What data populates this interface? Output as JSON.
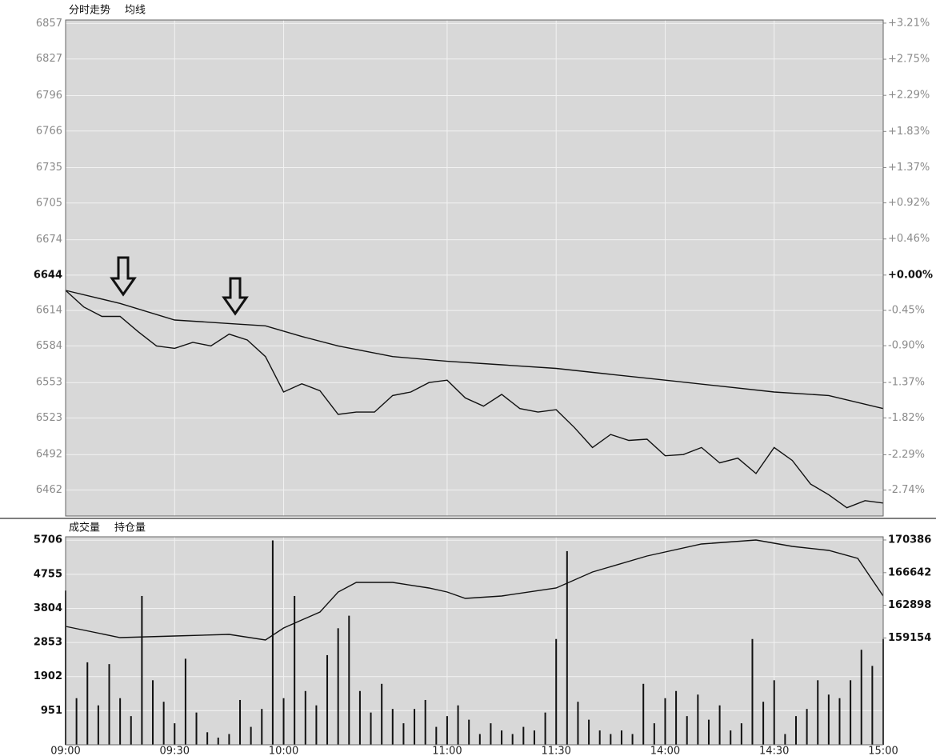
{
  "chart_data": [
    {
      "type": "line",
      "xlim": [
        0,
        225
      ],
      "ylim": [
        6440,
        6860
      ],
      "y2lim": [
        -3.07,
        3.25
      ],
      "yticks": [
        6857,
        6827,
        6796,
        6766,
        6735,
        6705,
        6674,
        6644,
        6614,
        6584,
        6553,
        6523,
        6492,
        6462
      ],
      "y2ticks": [
        {
          "value": 3.21,
          "label": "+3.21%"
        },
        {
          "value": 2.75,
          "label": "+2.75%"
        },
        {
          "value": 2.29,
          "label": "+2.29%"
        },
        {
          "value": 1.83,
          "label": "+1.83%"
        },
        {
          "value": 1.37,
          "label": "+1.37%"
        },
        {
          "value": 0.92,
          "label": "+0.92%"
        },
        {
          "value": 0.46,
          "label": "+0.46%"
        },
        {
          "value": 0.0,
          "label": "+0.00%"
        },
        {
          "value": -0.45,
          "label": "-0.45%"
        },
        {
          "value": -0.9,
          "label": "-0.90%"
        },
        {
          "value": -1.37,
          "label": "-1.37%"
        },
        {
          "value": -1.82,
          "label": "-1.82%"
        },
        {
          "value": -2.29,
          "label": "-2.29%"
        },
        {
          "value": -2.74,
          "label": "-2.74%"
        }
      ],
      "grid": true,
      "series": [
        {
          "name": "分时走势",
          "color": "#111111",
          "x": [
            0,
            5,
            10,
            15,
            20,
            25,
            30,
            35,
            40,
            45,
            50,
            55,
            60,
            65,
            70,
            75,
            80,
            85,
            90,
            95,
            100,
            105,
            110,
            115,
            120,
            125,
            130,
            135,
            140,
            145,
            150,
            155,
            160,
            165,
            170,
            175,
            180,
            185,
            190,
            195,
            200,
            205,
            210,
            215,
            220,
            225
          ],
          "values": [
            6631,
            6617,
            6609,
            6609,
            6596,
            6584,
            6582,
            6587,
            6584,
            6594,
            6589,
            6575,
            6545,
            6552,
            6546,
            6526,
            6528,
            6528,
            6542,
            6545,
            6553,
            6555,
            6540,
            6533,
            6543,
            6531,
            6528,
            6530,
            6515,
            6498,
            6509,
            6504,
            6505,
            6491,
            6492,
            6498,
            6485,
            6489,
            6476,
            6498,
            6487,
            6467,
            6458,
            6447,
            6453,
            6451
          ]
        },
        {
          "name": "均线",
          "color": "#111111",
          "x": [
            0,
            15,
            30,
            45,
            55,
            65,
            75,
            90,
            105,
            120,
            135,
            150,
            165,
            180,
            195,
            210,
            225
          ],
          "values": [
            6631,
            6620,
            6606,
            6603,
            6601,
            6592,
            6584,
            6575,
            6571,
            6568,
            6565,
            6560,
            6555,
            6550,
            6545,
            6542,
            6531
          ]
        }
      ]
    },
    {
      "type": "bar",
      "xlim": [
        0,
        225
      ],
      "ylim": [
        0,
        5800
      ],
      "y2lim": [
        146920,
        170750
      ],
      "xticks": [
        {
          "value": 0,
          "label": "09:00"
        },
        {
          "value": 30,
          "label": "09:30"
        },
        {
          "value": 60,
          "label": "10:00"
        },
        {
          "value": 105,
          "label": "11:00"
        },
        {
          "value": 135,
          "label": "11:30"
        },
        {
          "value": 165,
          "label": "14:00"
        },
        {
          "value": 195,
          "label": "14:30"
        },
        {
          "value": 225,
          "label": "15:00"
        }
      ],
      "yticks": [
        951,
        1902,
        2853,
        3804,
        4755,
        5706
      ],
      "y2ticks": [
        159154,
        162898,
        166642,
        170386
      ],
      "grid": true,
      "series": [
        {
          "name": "成交量",
          "type": "bar",
          "color": "#111111",
          "x": [
            0,
            3,
            6,
            9,
            12,
            15,
            18,
            21,
            24,
            27,
            30,
            33,
            36,
            39,
            42,
            45,
            48,
            51,
            54,
            57,
            60,
            63,
            66,
            69,
            72,
            75,
            78,
            81,
            84,
            87,
            90,
            93,
            96,
            99,
            102,
            105,
            108,
            111,
            114,
            117,
            120,
            123,
            126,
            129,
            132,
            135,
            138,
            141,
            144,
            147,
            150,
            153,
            156,
            159,
            162,
            165,
            168,
            171,
            174,
            177,
            180,
            183,
            186,
            189,
            192,
            195,
            198,
            201,
            204,
            207,
            210,
            213,
            216,
            219,
            222,
            225
          ],
          "values": [
            4300,
            1300,
            2300,
            1100,
            2250,
            1300,
            800,
            4150,
            1800,
            1200,
            600,
            2400,
            900,
            350,
            200,
            300,
            1250,
            500,
            1000,
            5700,
            1300,
            4150,
            1500,
            1100,
            2500,
            3250,
            3600,
            1500,
            900,
            1700,
            1000,
            600,
            1000,
            1250,
            500,
            800,
            1100,
            700,
            300,
            600,
            400,
            300,
            500,
            400,
            900,
            2950,
            5400,
            1200,
            700,
            400,
            300,
            400,
            300,
            1700,
            600,
            1300,
            1500,
            800,
            1400,
            700,
            1100,
            400,
            600,
            2950,
            1200,
            1800,
            300,
            800,
            1000,
            1800,
            1400,
            1300,
            1800,
            2650,
            2200,
            2950
          ]
        },
        {
          "name": "持仓量",
          "type": "line",
          "axis": "y2",
          "color": "#111111",
          "x": [
            0,
            15,
            30,
            45,
            55,
            60,
            70,
            75,
            80,
            90,
            100,
            105,
            110,
            120,
            135,
            145,
            160,
            175,
            190,
            200,
            210,
            218,
            225
          ],
          "values": [
            160485,
            159200,
            159385,
            159570,
            158928,
            160300,
            162135,
            164425,
            165525,
            165525,
            164885,
            164425,
            163690,
            163970,
            164885,
            166720,
            168550,
            169925,
            170385,
            169650,
            169190,
            168275,
            163970
          ]
        }
      ]
    }
  ]
}
